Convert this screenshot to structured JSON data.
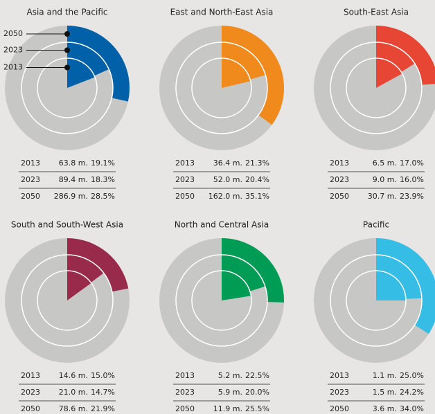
{
  "chart_data": [
    {
      "type": "pie",
      "title": "Asia and the Pacific",
      "color": "#0061a8",
      "years": [
        "2013",
        "2023",
        "2050"
      ],
      "population": [
        "63.8 m.",
        "89.4 m.",
        "286.9 m."
      ],
      "values": [
        19.1,
        18.3,
        28.5
      ],
      "value_labels": [
        "19.1%",
        "18.3%",
        "28.5%"
      ]
    },
    {
      "type": "pie",
      "title": "East and North-East Asia",
      "color": "#f08a1c",
      "years": [
        "2013",
        "2023",
        "2050"
      ],
      "population": [
        "36.4 m.",
        "52.0 m.",
        "162.0 m."
      ],
      "values": [
        21.3,
        20.4,
        35.1
      ],
      "value_labels": [
        "21.3%",
        "20.4%",
        "35.1%"
      ]
    },
    {
      "type": "pie",
      "title": "South-East Asia",
      "color": "#e64633",
      "years": [
        "2013",
        "2023",
        "2050"
      ],
      "population": [
        "6.5 m.",
        "9.0 m.",
        "30.7 m."
      ],
      "values": [
        17.0,
        16.0,
        23.9
      ],
      "value_labels": [
        "17.0%",
        "16.0%",
        "23.9%"
      ]
    },
    {
      "type": "pie",
      "title": "South and South-West Asia",
      "color": "#982a4b",
      "years": [
        "2013",
        "2023",
        "2050"
      ],
      "population": [
        "14.6 m.",
        "21.0 m.",
        "78.6 m."
      ],
      "values": [
        15.0,
        14.7,
        21.9
      ],
      "value_labels": [
        "15.0%",
        "14.7%",
        "21.9%"
      ]
    },
    {
      "type": "pie",
      "title": "North and Central Asia",
      "color": "#009b55",
      "years": [
        "2013",
        "2023",
        "2050"
      ],
      "population": [
        "5.2 m.",
        "5.9 m.",
        "11.9 m."
      ],
      "values": [
        22.5,
        20.0,
        25.5
      ],
      "value_labels": [
        "22.5%",
        "20.0%",
        "25.5%"
      ]
    },
    {
      "type": "pie",
      "title": "Pacific",
      "color": "#36bde6",
      "years": [
        "2013",
        "2023",
        "2050"
      ],
      "population": [
        "1.1 m.",
        "1.5 m.",
        "3.6 m."
      ],
      "values": [
        25.0,
        24.2,
        34.0
      ],
      "value_labels": [
        "25.0%",
        "24.2%",
        "34.0%"
      ]
    }
  ]
}
